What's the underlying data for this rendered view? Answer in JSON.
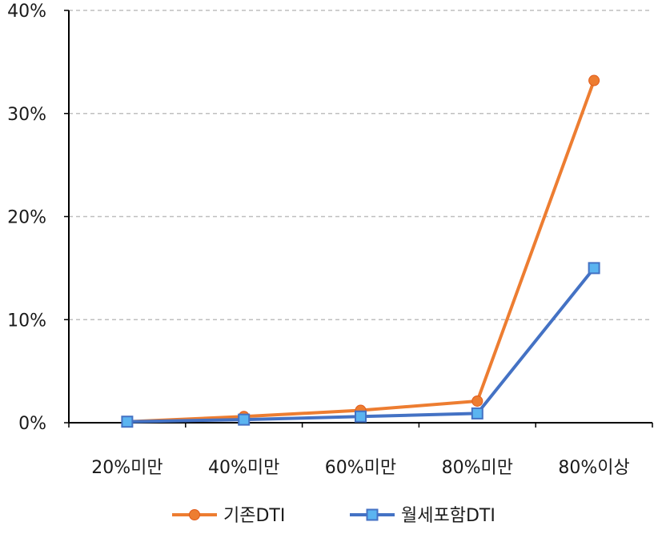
{
  "chart_data": {
    "type": "line",
    "categories": [
      "20%미만",
      "40%미만",
      "60%미만",
      "80%미만",
      "80%이상"
    ],
    "y_ticks": [
      "0%",
      "10%",
      "20%",
      "30%",
      "40%"
    ],
    "ylim": [
      0,
      40
    ],
    "grid": true,
    "legend_position": "bottom",
    "series": [
      {
        "name": "기존DTI",
        "values": [
          0.1,
          0.6,
          1.2,
          2.1,
          33.2
        ],
        "color": "#ED7D31",
        "marker": "circle"
      },
      {
        "name": "월세포함DTI",
        "values": [
          0.1,
          0.3,
          0.6,
          0.9,
          15.0
        ],
        "color": "#4472C4",
        "marker_fill": "#5BB4F0",
        "marker": "square"
      }
    ],
    "xlabel": "",
    "ylabel": "",
    "title": ""
  }
}
